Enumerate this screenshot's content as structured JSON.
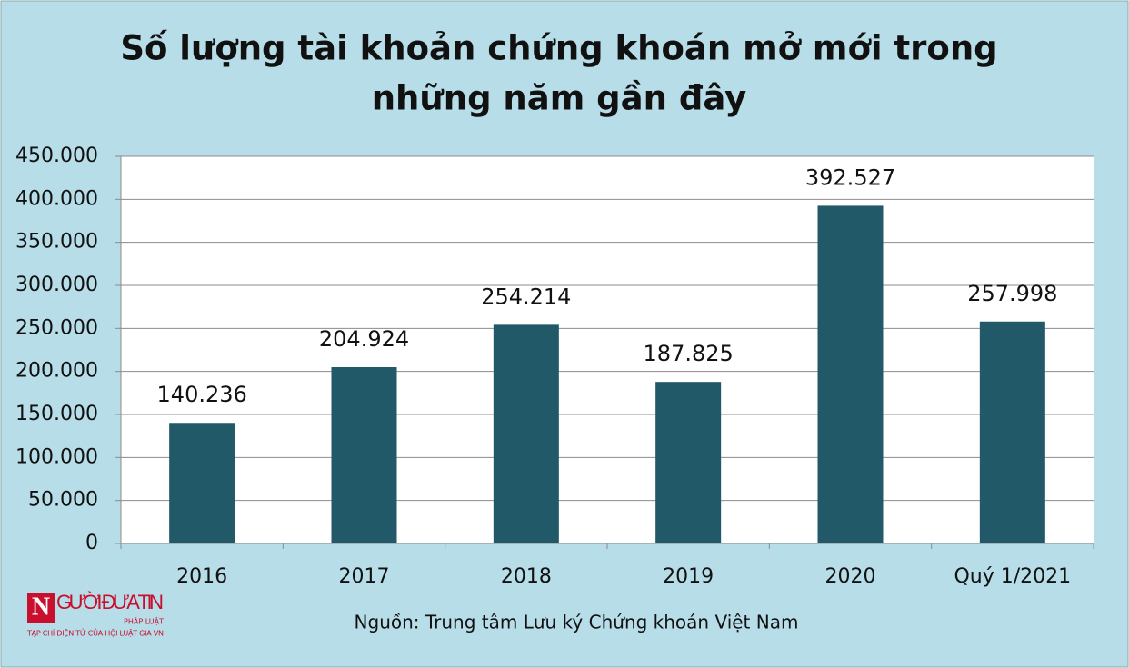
{
  "chart_data": {
    "type": "bar",
    "title": [
      "Số lượng tài khoản chứng khoán mở mới trong",
      "những năm gần đây"
    ],
    "categories": [
      "2016",
      "2017",
      "2018",
      "2019",
      "2020",
      "Quý 1/2021"
    ],
    "values": [
      140236,
      204924,
      254214,
      187825,
      392527,
      257998
    ],
    "value_labels": [
      "140.236",
      "204.924",
      "254.214",
      "187.825",
      "392.527",
      "257.998"
    ],
    "color": "#215968",
    "ylim": [
      0,
      450000
    ],
    "yticks": [
      0,
      {
        "value": 50000,
        "label": "50.000"
      },
      {
        "value": 100000,
        "label": "100.000"
      },
      {
        "value": 150000,
        "label": "150.000"
      },
      {
        "value": 200000,
        "label": "200.000"
      },
      {
        "value": 250000,
        "label": "250.000"
      },
      {
        "value": 300000,
        "label": "300.000"
      },
      {
        "value": 350000,
        "label": "350.000"
      },
      {
        "value": 400000,
        "label": "400.000"
      },
      {
        "value": 450000,
        "label": "450.000"
      }
    ],
    "grid": true,
    "source": "Nguồn: Trung tâm Lưu ký Chứng khoán Việt Nam"
  },
  "logo": {
    "mark": "N",
    "name": "GƯỜI ĐƯA TIN",
    "tag": "PHÁP LUẬT",
    "subtitle": "TẠP CHÍ ĐIỆN TỬ CỦA HỘI LUẬT GIA VN"
  }
}
